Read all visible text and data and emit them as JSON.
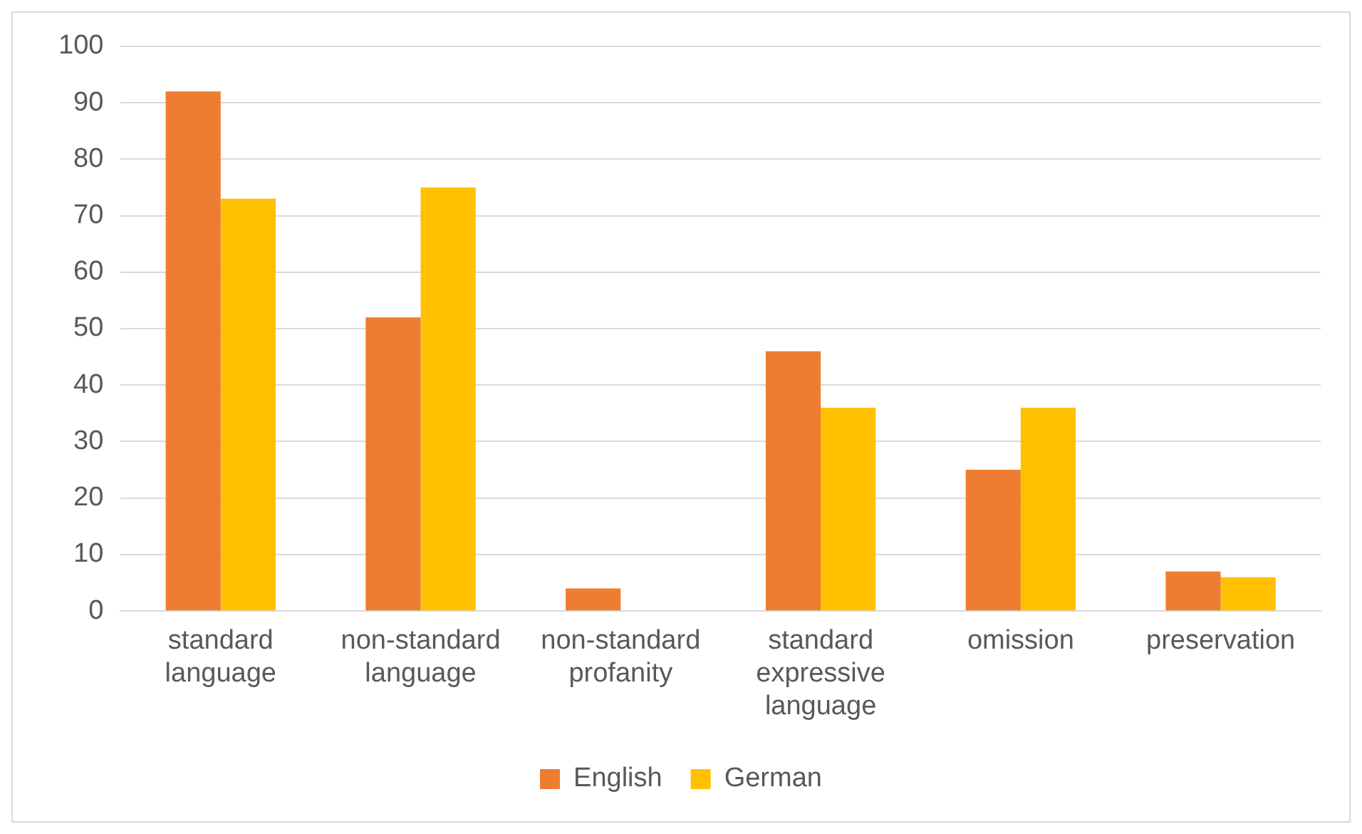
{
  "chart_data": {
    "type": "bar",
    "categories": [
      "standard language",
      "non-standard language",
      "non-standard profanity",
      "standard expressive language",
      "omission",
      "preservation"
    ],
    "series": [
      {
        "name": "English",
        "color": "#ed7d31",
        "values": [
          92,
          52,
          4,
          46,
          25,
          7
        ]
      },
      {
        "name": "German",
        "color": "#ffc000",
        "values": [
          73,
          75,
          0,
          36,
          36,
          6
        ]
      }
    ],
    "ylim": [
      0,
      100
    ],
    "yticks": [
      0,
      10,
      20,
      30,
      40,
      50,
      60,
      70,
      80,
      90,
      100
    ],
    "grid": "y",
    "legend": "bottom"
  }
}
